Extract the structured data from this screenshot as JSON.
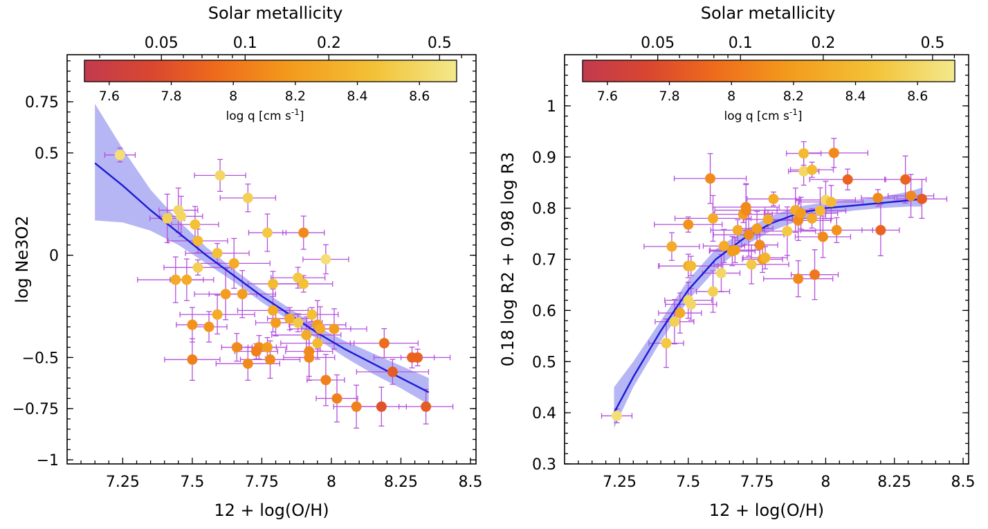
{
  "chart_data": [
    {
      "type": "scatter",
      "xlabel": "12 + log(O/H)",
      "ylabel": "log Ne3O2",
      "top_axis_label": "Solar metallicity",
      "top_ticks": [
        "0.05",
        "0.1",
        "0.2",
        "0.5"
      ],
      "top_tick_values": [
        0.05,
        0.1,
        0.2,
        0.5
      ],
      "colorbar_label": "log q [cm s",
      "colorbar_label_sup": "-1",
      "colorbar_label_end": "]",
      "colorbar_ticks": [
        "7.6",
        "7.8",
        "8",
        "8.2",
        "8.4",
        "8.6"
      ],
      "colorbar_range": [
        7.52,
        8.72
      ],
      "xlim": [
        7.05,
        8.52
      ],
      "ylim": [
        -1.02,
        0.98
      ],
      "xticks": [
        "7.25",
        "7.5",
        "7.75",
        "8",
        "8.25",
        "8.5"
      ],
      "xtick_values": [
        7.25,
        7.5,
        7.75,
        8.0,
        8.25,
        8.5
      ],
      "yticks": [
        "0.75",
        "0.5",
        "0",
        "−0.5",
        "−0.75",
        "−1"
      ],
      "ytick_values": [
        0.75,
        0.5,
        0,
        -0.5,
        -0.75,
        -1
      ],
      "points": [
        {
          "x": 7.24,
          "y": 0.49,
          "q": 8.65
        },
        {
          "x": 7.41,
          "y": 0.18,
          "q": 8.55
        },
        {
          "x": 7.45,
          "y": 0.22,
          "q": 8.6
        },
        {
          "x": 7.46,
          "y": 0.19,
          "q": 8.6
        },
        {
          "x": 7.51,
          "y": 0.15,
          "q": 8.45
        },
        {
          "x": 7.6,
          "y": 0.39,
          "q": 8.6
        },
        {
          "x": 7.7,
          "y": 0.28,
          "q": 8.55
        },
        {
          "x": 7.52,
          "y": 0.07,
          "q": 8.4
        },
        {
          "x": 7.59,
          "y": 0.01,
          "q": 8.45
        },
        {
          "x": 7.52,
          "y": -0.06,
          "q": 8.55
        },
        {
          "x": 7.65,
          "y": -0.04,
          "q": 8.3
        },
        {
          "x": 7.44,
          "y": -0.12,
          "q": 8.3
        },
        {
          "x": 7.48,
          "y": -0.12,
          "q": 8.3
        },
        {
          "x": 7.77,
          "y": 0.11,
          "q": 8.5
        },
        {
          "x": 7.9,
          "y": 0.11,
          "q": 8.1
        },
        {
          "x": 7.98,
          "y": -0.02,
          "q": 8.65
        },
        {
          "x": 7.79,
          "y": -0.14,
          "q": 8.4
        },
        {
          "x": 7.88,
          "y": -0.11,
          "q": 8.5
        },
        {
          "x": 7.9,
          "y": -0.14,
          "q": 8.45
        },
        {
          "x": 7.62,
          "y": -0.19,
          "q": 8.2
        },
        {
          "x": 7.68,
          "y": -0.19,
          "q": 8.2
        },
        {
          "x": 7.79,
          "y": -0.27,
          "q": 8.3
        },
        {
          "x": 7.59,
          "y": -0.29,
          "q": 8.3
        },
        {
          "x": 7.5,
          "y": -0.34,
          "q": 8.15
        },
        {
          "x": 7.56,
          "y": -0.35,
          "q": 8.15
        },
        {
          "x": 7.8,
          "y": -0.33,
          "q": 8.2
        },
        {
          "x": 7.85,
          "y": -0.31,
          "q": 8.3
        },
        {
          "x": 7.88,
          "y": -0.33,
          "q": 8.5
        },
        {
          "x": 7.93,
          "y": -0.29,
          "q": 8.45
        },
        {
          "x": 7.95,
          "y": -0.34,
          "q": 8.2
        },
        {
          "x": 7.96,
          "y": -0.36,
          "q": 8.3
        },
        {
          "x": 8.01,
          "y": -0.36,
          "q": 8.2
        },
        {
          "x": 7.91,
          "y": -0.39,
          "q": 8.3
        },
        {
          "x": 7.95,
          "y": -0.43,
          "q": 8.4
        },
        {
          "x": 7.66,
          "y": -0.45,
          "q": 8.1
        },
        {
          "x": 7.74,
          "y": -0.45,
          "q": 8.1
        },
        {
          "x": 7.77,
          "y": -0.45,
          "q": 8.2
        },
        {
          "x": 7.73,
          "y": -0.47,
          "q": 8.05
        },
        {
          "x": 7.92,
          "y": -0.47,
          "q": 8.1
        },
        {
          "x": 7.92,
          "y": -0.5,
          "q": 8.1
        },
        {
          "x": 7.5,
          "y": -0.51,
          "q": 8.05
        },
        {
          "x": 7.78,
          "y": -0.51,
          "q": 8.1
        },
        {
          "x": 7.7,
          "y": -0.53,
          "q": 8.1
        },
        {
          "x": 8.19,
          "y": -0.43,
          "q": 7.95
        },
        {
          "x": 8.22,
          "y": -0.57,
          "q": 7.85
        },
        {
          "x": 8.29,
          "y": -0.5,
          "q": 7.9
        },
        {
          "x": 8.31,
          "y": -0.5,
          "q": 7.9
        },
        {
          "x": 7.98,
          "y": -0.61,
          "q": 8.05
        },
        {
          "x": 8.02,
          "y": -0.7,
          "q": 8.05
        },
        {
          "x": 8.09,
          "y": -0.74,
          "q": 8.05
        },
        {
          "x": 8.18,
          "y": -0.74,
          "q": 7.8
        },
        {
          "x": 8.34,
          "y": -0.74,
          "q": 7.85
        }
      ],
      "fit": {
        "x": [
          7.15,
          7.25,
          7.35,
          7.45,
          7.55,
          7.65,
          7.75,
          7.85,
          7.95,
          8.05,
          8.15,
          8.25,
          8.35
        ],
        "y": [
          0.45,
          0.34,
          0.22,
          0.11,
          0.0,
          -0.1,
          -0.2,
          -0.29,
          -0.38,
          -0.46,
          -0.53,
          -0.6,
          -0.67
        ],
        "band_low": [
          0.17,
          0.16,
          0.12,
          0.05,
          -0.04,
          -0.13,
          -0.23,
          -0.32,
          -0.41,
          -0.5,
          -0.58,
          -0.65,
          -0.73
        ],
        "band_high": [
          0.74,
          0.52,
          0.32,
          0.17,
          0.04,
          -0.07,
          -0.17,
          -0.26,
          -0.35,
          -0.42,
          -0.48,
          -0.54,
          -0.6
        ]
      }
    },
    {
      "type": "scatter",
      "xlabel": "12 + log(O/H)",
      "ylabel": "0.18 log R2 + 0.98 log R3",
      "top_axis_label": "Solar metallicity",
      "top_ticks": [
        "0.05",
        "0.1",
        "0.2",
        "0.5"
      ],
      "top_tick_values": [
        0.05,
        0.1,
        0.2,
        0.5
      ],
      "colorbar_label": "log q [cm s",
      "colorbar_label_sup": "-1",
      "colorbar_label_end": "]",
      "colorbar_ticks": [
        "7.6",
        "7.8",
        "8",
        "8.2",
        "8.4",
        "8.6"
      ],
      "colorbar_range": [
        7.52,
        8.72
      ],
      "xlim": [
        7.05,
        8.52
      ],
      "ylim": [
        0.3,
        1.1
      ],
      "xticks": [
        "7.25",
        "7.5",
        "7.75",
        "8",
        "8.25",
        "8.5"
      ],
      "xtick_values": [
        7.25,
        7.5,
        7.75,
        8.0,
        8.25,
        8.5
      ],
      "yticks": [
        "1",
        "0.9",
        "0.8",
        "0.7",
        "0.6",
        "0.5",
        "0.4",
        "0.3"
      ],
      "ytick_values": [
        1,
        0.9,
        0.8,
        0.7,
        0.6,
        0.5,
        0.4,
        0.3
      ],
      "points": [
        {
          "x": 7.24,
          "y": 0.394,
          "q": 8.65
        },
        {
          "x": 7.42,
          "y": 0.536,
          "q": 8.5
        },
        {
          "x": 7.45,
          "y": 0.578,
          "q": 8.55
        },
        {
          "x": 7.47,
          "y": 0.595,
          "q": 8.3
        },
        {
          "x": 7.5,
          "y": 0.62,
          "q": 8.6
        },
        {
          "x": 7.51,
          "y": 0.612,
          "q": 8.6
        },
        {
          "x": 7.44,
          "y": 0.725,
          "q": 8.3
        },
        {
          "x": 7.5,
          "y": 0.687,
          "q": 8.3
        },
        {
          "x": 7.51,
          "y": 0.687,
          "q": 8.4
        },
        {
          "x": 7.5,
          "y": 0.768,
          "q": 8.15
        },
        {
          "x": 7.58,
          "y": 0.858,
          "q": 8.1
        },
        {
          "x": 7.59,
          "y": 0.78,
          "q": 8.3
        },
        {
          "x": 7.59,
          "y": 0.637,
          "q": 8.55
        },
        {
          "x": 7.62,
          "y": 0.673,
          "q": 8.6
        },
        {
          "x": 7.63,
          "y": 0.726,
          "q": 8.3
        },
        {
          "x": 7.66,
          "y": 0.716,
          "q": 8.2
        },
        {
          "x": 7.67,
          "y": 0.718,
          "q": 8.2
        },
        {
          "x": 7.68,
          "y": 0.757,
          "q": 8.3
        },
        {
          "x": 7.7,
          "y": 0.788,
          "q": 8.2
        },
        {
          "x": 7.71,
          "y": 0.796,
          "q": 8.1
        },
        {
          "x": 7.71,
          "y": 0.802,
          "q": 8.1
        },
        {
          "x": 7.72,
          "y": 0.748,
          "q": 8.1
        },
        {
          "x": 7.73,
          "y": 0.69,
          "q": 8.5
        },
        {
          "x": 7.75,
          "y": 0.76,
          "q": 8.2
        },
        {
          "x": 7.76,
          "y": 0.728,
          "q": 8.1
        },
        {
          "x": 7.77,
          "y": 0.7,
          "q": 8.2
        },
        {
          "x": 7.78,
          "y": 0.703,
          "q": 8.35
        },
        {
          "x": 7.79,
          "y": 0.778,
          "q": 8.3
        },
        {
          "x": 7.81,
          "y": 0.818,
          "q": 8.3
        },
        {
          "x": 7.86,
          "y": 0.755,
          "q": 8.5
        },
        {
          "x": 7.89,
          "y": 0.796,
          "q": 8.3
        },
        {
          "x": 7.9,
          "y": 0.776,
          "q": 8.1
        },
        {
          "x": 7.9,
          "y": 0.662,
          "q": 8.1
        },
        {
          "x": 7.91,
          "y": 0.79,
          "q": 8.2
        },
        {
          "x": 7.92,
          "y": 0.872,
          "q": 8.6
        },
        {
          "x": 7.92,
          "y": 0.907,
          "q": 8.4
        },
        {
          "x": 7.95,
          "y": 0.78,
          "q": 8.3
        },
        {
          "x": 7.95,
          "y": 0.875,
          "q": 8.4
        },
        {
          "x": 7.96,
          "y": 0.67,
          "q": 8.0
        },
        {
          "x": 7.98,
          "y": 0.795,
          "q": 8.4
        },
        {
          "x": 7.99,
          "y": 0.744,
          "q": 8.1
        },
        {
          "x": 8.0,
          "y": 0.816,
          "q": 8.6
        },
        {
          "x": 8.02,
          "y": 0.812,
          "q": 8.4
        },
        {
          "x": 8.03,
          "y": 0.908,
          "q": 8.1
        },
        {
          "x": 8.04,
          "y": 0.757,
          "q": 8.15
        },
        {
          "x": 8.08,
          "y": 0.856,
          "q": 7.9
        },
        {
          "x": 8.19,
          "y": 0.82,
          "q": 8.1
        },
        {
          "x": 8.2,
          "y": 0.757,
          "q": 7.9
        },
        {
          "x": 8.29,
          "y": 0.856,
          "q": 7.9
        },
        {
          "x": 8.31,
          "y": 0.824,
          "q": 8.1
        },
        {
          "x": 8.35,
          "y": 0.818,
          "q": 7.85
        }
      ],
      "fit": {
        "x": [
          7.23,
          7.3,
          7.4,
          7.5,
          7.6,
          7.7,
          7.8,
          7.9,
          8.0,
          8.1,
          8.2,
          8.3,
          8.35
        ],
        "y": [
          0.4,
          0.47,
          0.56,
          0.64,
          0.7,
          0.74,
          0.77,
          0.79,
          0.8,
          0.805,
          0.81,
          0.815,
          0.818
        ],
        "band_low": [
          0.37,
          0.45,
          0.54,
          0.62,
          0.68,
          0.725,
          0.755,
          0.775,
          0.788,
          0.795,
          0.8,
          0.803,
          0.803
        ],
        "band_high": [
          0.45,
          0.5,
          0.58,
          0.66,
          0.72,
          0.755,
          0.785,
          0.803,
          0.812,
          0.816,
          0.822,
          0.832,
          0.84
        ]
      }
    }
  ]
}
